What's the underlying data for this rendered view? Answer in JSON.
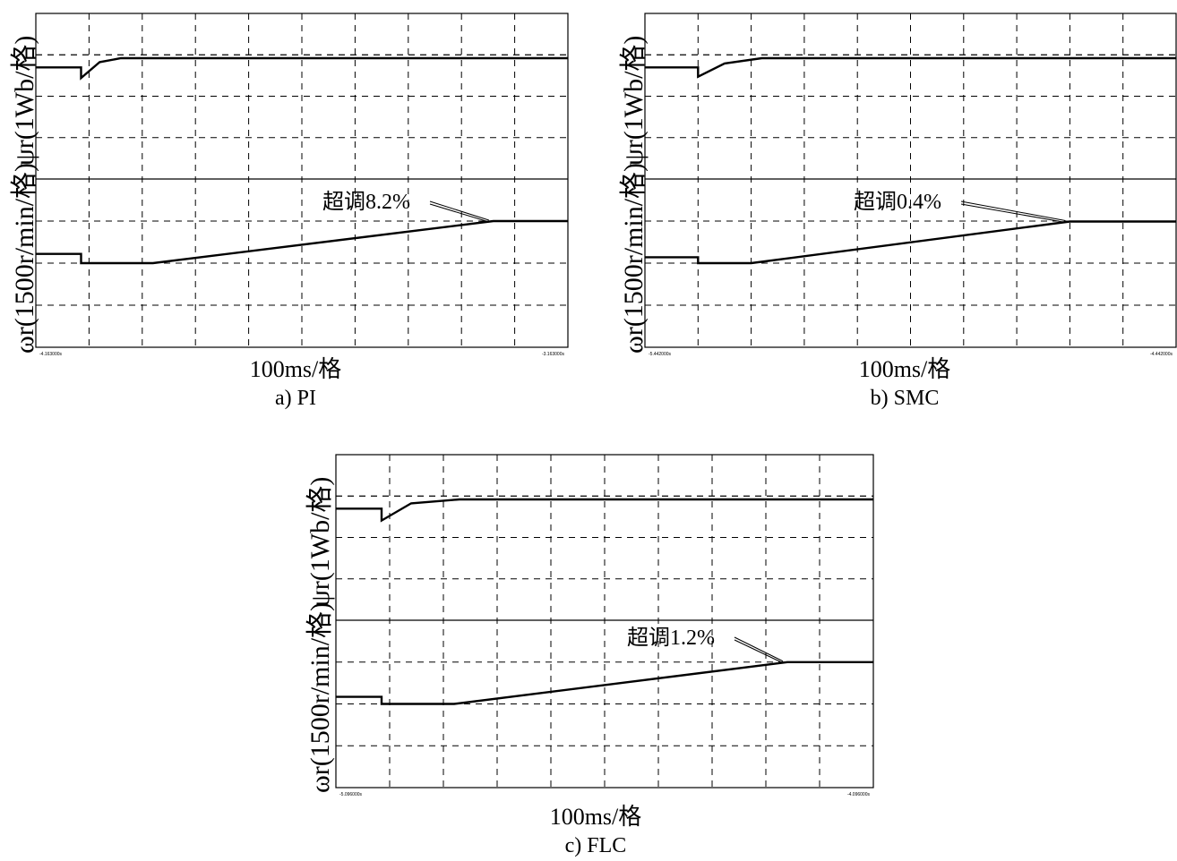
{
  "chart_data": [
    {
      "type": "line",
      "caption": "a) PI",
      "xlabel": "100ms/格",
      "ylabel_top": "ψr(1Wb/格)",
      "ylabel_bottom": "ωr(1500r/min/格)",
      "x_start_label": "-4.163000s",
      "x_end_label": "-3.163000s",
      "annotation": "超调8.2%",
      "xlim": [
        0,
        1000
      ],
      "grid": true,
      "series": [
        {
          "role": "flux",
          "points": [
            [
              0,
              1.0
            ],
            [
              85,
              1.0
            ],
            [
              85,
              0.92
            ],
            [
              120,
              1.04
            ],
            [
              160,
              1.07
            ],
            [
              230,
              1.07
            ],
            [
              400,
              1.07
            ],
            [
              1000,
              1.07
            ]
          ]
        },
        {
          "role": "speed",
          "points": [
            [
              0,
              1.22
            ],
            [
              85,
              1.22
            ],
            [
              85,
              1.0
            ],
            [
              220,
              1.0
            ],
            [
              860,
              2.0
            ],
            [
              1000,
              2.0
            ]
          ]
        }
      ]
    },
    {
      "type": "line",
      "caption": "b) SMC",
      "xlabel": "100ms/格",
      "ylabel_top": "ψr(1Wb/格)",
      "ylabel_bottom": "ωr(1500r/min/格)",
      "x_start_label": "-5.442000s",
      "x_end_label": "-4.442000s",
      "annotation": "超调0.4%",
      "xlim": [
        0,
        1000
      ],
      "grid": true,
      "series": [
        {
          "role": "flux",
          "points": [
            [
              0,
              1.0
            ],
            [
              100,
              1.0
            ],
            [
              100,
              0.93
            ],
            [
              150,
              1.03
            ],
            [
              220,
              1.07
            ],
            [
              1000,
              1.07
            ]
          ]
        },
        {
          "role": "speed",
          "points": [
            [
              0,
              1.14
            ],
            [
              100,
              1.14
            ],
            [
              100,
              1.0
            ],
            [
              200,
              1.0
            ],
            [
              800,
              1.99
            ],
            [
              1000,
              1.99
            ]
          ]
        }
      ]
    },
    {
      "type": "line",
      "caption": "c) FLC",
      "xlabel": "100ms/格",
      "ylabel_top": "ψr(1Wb/格)",
      "ylabel_bottom": "ωr(1500r/min/格)",
      "x_start_label": "-5.096000s",
      "x_end_label": "-4.096000s",
      "annotation": "超调1.2%",
      "xlim": [
        0,
        1000
      ],
      "grid": true,
      "series": [
        {
          "role": "flux",
          "points": [
            [
              0,
              1.0
            ],
            [
              85,
              1.0
            ],
            [
              85,
              0.91
            ],
            [
              140,
              1.04
            ],
            [
              230,
              1.07
            ],
            [
              1000,
              1.07
            ]
          ]
        },
        {
          "role": "speed",
          "points": [
            [
              0,
              1.17
            ],
            [
              85,
              1.17
            ],
            [
              85,
              1.0
            ],
            [
              220,
              1.0
            ],
            [
              840,
              2.0
            ],
            [
              1000,
              2.0
            ]
          ]
        }
      ]
    }
  ]
}
